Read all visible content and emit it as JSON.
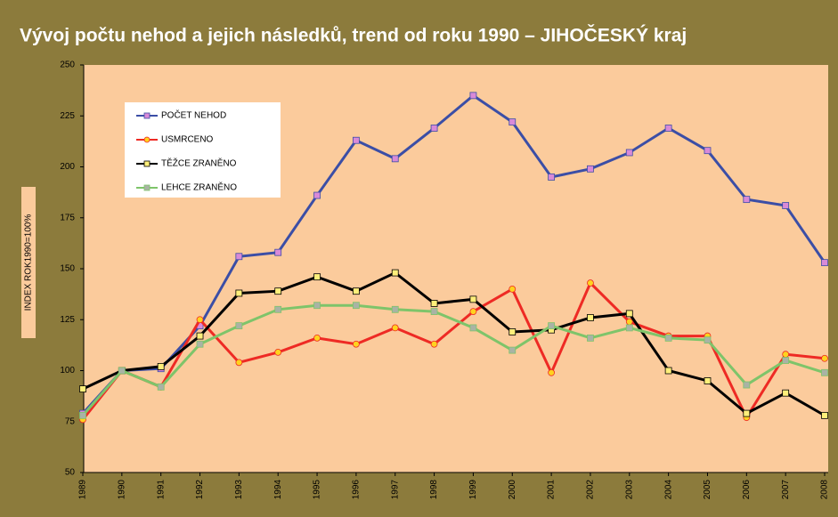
{
  "chart_data": {
    "type": "line",
    "title": "Vývoj počtu nehod a jejich následků, trend od roku 1990 – JIHOČESKÝ kraj",
    "y_label": "INDEX ROK1990=100%",
    "categories": [
      "1989",
      "1990",
      "1991",
      "1992",
      "1993",
      "1994",
      "1995",
      "1996",
      "1997",
      "1998",
      "1999",
      "2000",
      "2001",
      "2002",
      "2003",
      "2004",
      "2005",
      "2006",
      "2007",
      "2008"
    ],
    "series": [
      {
        "name": "POČET NEHOD",
        "color": "#3b4ea6",
        "marker": "square",
        "marker_color": "#d98ad8",
        "values": [
          79,
          100,
          101,
          122,
          156,
          158,
          186,
          213,
          204,
          219,
          235,
          222,
          195,
          199,
          207,
          219,
          208,
          184,
          181,
          153
        ]
      },
      {
        "name": "USMRCENO",
        "color": "#ee2a24",
        "marker": "circle",
        "marker_color": "#ffd21f",
        "values": [
          76,
          100,
          92,
          125,
          104,
          109,
          116,
          113,
          121,
          113,
          129,
          140,
          99,
          143,
          124,
          117,
          117,
          77,
          108,
          106
        ]
      },
      {
        "name": "TĚŽCE ZRANĚNO",
        "color": "#000000",
        "marker": "square",
        "marker_color": "#ffef7a",
        "values": [
          91,
          100,
          102,
          117,
          138,
          139,
          146,
          139,
          148,
          133,
          135,
          119,
          120,
          126,
          128,
          100,
          95,
          79,
          89,
          78
        ]
      },
      {
        "name": "LEHCE ZRANĚNO",
        "color": "#7ec46a",
        "marker": "square",
        "marker_color": "#a9b3a5",
        "values": [
          78,
          100,
          92,
          113,
          122,
          130,
          132,
          132,
          130,
          129,
          121,
          110,
          122,
          116,
          121,
          116,
          115,
          93,
          105,
          99
        ]
      }
    ],
    "ylim": [
      50,
      250
    ],
    "yticks": [
      50,
      75,
      100,
      125,
      150,
      175,
      200,
      225,
      250
    ]
  }
}
